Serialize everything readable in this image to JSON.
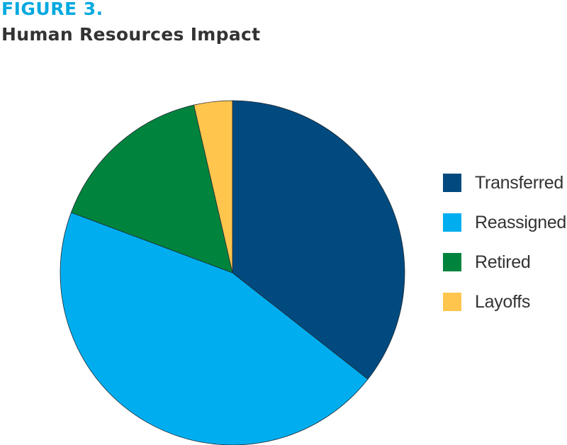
{
  "figure": {
    "label": "FIGURE 3.",
    "title": "Human Resources Impact"
  },
  "chart_data": {
    "type": "pie",
    "title": "Human Resources Impact",
    "categories": [
      "Transferred",
      "Reassigned",
      "Retired",
      "Layoffs"
    ],
    "values": [
      35.6,
      45.1,
      15.7,
      3.6
    ],
    "colors": [
      "#004a80",
      "#00aeef",
      "#00843d",
      "#ffc54d"
    ],
    "start_angle_deg": 0,
    "direction": "clockwise",
    "legend_position": "right",
    "show_values": false
  },
  "legend": {
    "items": [
      {
        "label": "Transferred",
        "color": "#004a80"
      },
      {
        "label": "Reassigned",
        "color": "#00aeef"
      },
      {
        "label": "Retired",
        "color": "#00843d"
      },
      {
        "label": "Layoffs",
        "color": "#ffc54d"
      }
    ]
  }
}
